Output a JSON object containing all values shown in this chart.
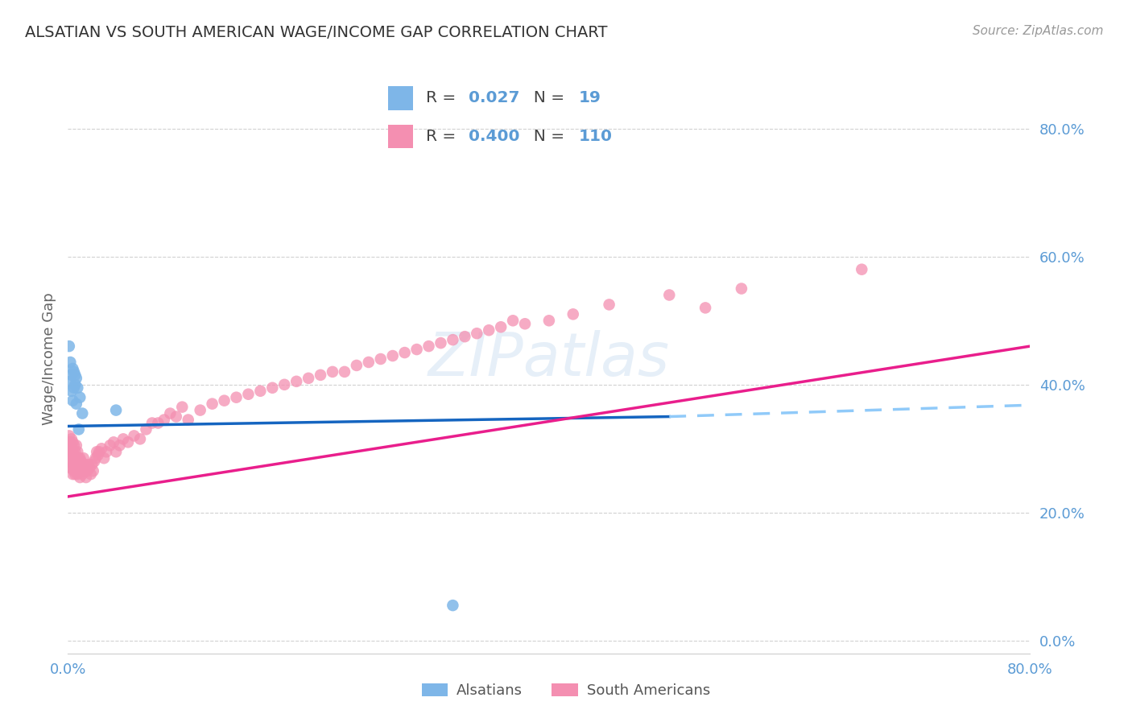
{
  "title": "ALSATIAN VS SOUTH AMERICAN WAGE/INCOME GAP CORRELATION CHART",
  "source": "Source: ZipAtlas.com",
  "ylabel": "Wage/Income Gap",
  "xlim": [
    0.0,
    0.8
  ],
  "ylim": [
    -0.02,
    0.9
  ],
  "ytick_vals": [
    0.0,
    0.2,
    0.4,
    0.6,
    0.8
  ],
  "xtick_vals": [
    0.0,
    0.1,
    0.2,
    0.3,
    0.4,
    0.5,
    0.6,
    0.7,
    0.8
  ],
  "watermark": "ZIPatlas",
  "legend_blue_r": "0.027",
  "legend_blue_n": "19",
  "legend_pink_r": "0.400",
  "legend_pink_n": "110",
  "blue_color": "#7EB6E8",
  "pink_color": "#F48FB1",
  "line_blue_color": "#1565C0",
  "line_pink_color": "#E91E8C",
  "line_dashed_color": "#90CAF9",
  "title_color": "#333333",
  "axis_label_color": "#5B9BD5",
  "grid_color": "#CCCCCC",
  "background_color": "#FFFFFF",
  "als_x": [
    0.001,
    0.002,
    0.002,
    0.003,
    0.003,
    0.004,
    0.004,
    0.005,
    0.005,
    0.006,
    0.006,
    0.007,
    0.007,
    0.008,
    0.009,
    0.01,
    0.012,
    0.04,
    0.32
  ],
  "als_y": [
    0.46,
    0.435,
    0.405,
    0.415,
    0.39,
    0.425,
    0.375,
    0.42,
    0.395,
    0.415,
    0.4,
    0.41,
    0.37,
    0.395,
    0.33,
    0.38,
    0.355,
    0.36,
    0.055
  ],
  "sa_x": [
    0.001,
    0.001,
    0.001,
    0.002,
    0.002,
    0.002,
    0.002,
    0.002,
    0.003,
    0.003,
    0.003,
    0.003,
    0.003,
    0.004,
    0.004,
    0.004,
    0.004,
    0.005,
    0.005,
    0.005,
    0.005,
    0.006,
    0.006,
    0.006,
    0.006,
    0.007,
    0.007,
    0.007,
    0.008,
    0.008,
    0.008,
    0.009,
    0.009,
    0.01,
    0.01,
    0.01,
    0.011,
    0.011,
    0.012,
    0.012,
    0.013,
    0.013,
    0.014,
    0.015,
    0.015,
    0.016,
    0.017,
    0.018,
    0.019,
    0.02,
    0.021,
    0.022,
    0.023,
    0.024,
    0.025,
    0.026,
    0.028,
    0.03,
    0.032,
    0.035,
    0.038,
    0.04,
    0.043,
    0.046,
    0.05,
    0.055,
    0.06,
    0.065,
    0.07,
    0.075,
    0.08,
    0.085,
    0.09,
    0.095,
    0.1,
    0.11,
    0.12,
    0.13,
    0.14,
    0.15,
    0.16,
    0.17,
    0.18,
    0.19,
    0.2,
    0.21,
    0.22,
    0.23,
    0.24,
    0.25,
    0.26,
    0.27,
    0.28,
    0.29,
    0.3,
    0.31,
    0.32,
    0.33,
    0.34,
    0.35,
    0.36,
    0.37,
    0.38,
    0.4,
    0.42,
    0.45,
    0.5,
    0.53,
    0.56,
    0.66
  ],
  "sa_y": [
    0.32,
    0.29,
    0.31,
    0.295,
    0.31,
    0.28,
    0.3,
    0.27,
    0.305,
    0.285,
    0.27,
    0.295,
    0.315,
    0.275,
    0.26,
    0.295,
    0.31,
    0.265,
    0.29,
    0.275,
    0.305,
    0.26,
    0.28,
    0.295,
    0.27,
    0.265,
    0.285,
    0.305,
    0.26,
    0.28,
    0.295,
    0.27,
    0.285,
    0.255,
    0.27,
    0.285,
    0.265,
    0.28,
    0.26,
    0.275,
    0.27,
    0.285,
    0.275,
    0.255,
    0.27,
    0.265,
    0.275,
    0.27,
    0.26,
    0.275,
    0.265,
    0.28,
    0.285,
    0.295,
    0.29,
    0.295,
    0.3,
    0.285,
    0.295,
    0.305,
    0.31,
    0.295,
    0.305,
    0.315,
    0.31,
    0.32,
    0.315,
    0.33,
    0.34,
    0.34,
    0.345,
    0.355,
    0.35,
    0.365,
    0.345,
    0.36,
    0.37,
    0.375,
    0.38,
    0.385,
    0.39,
    0.395,
    0.4,
    0.405,
    0.41,
    0.415,
    0.42,
    0.42,
    0.43,
    0.435,
    0.44,
    0.445,
    0.45,
    0.455,
    0.46,
    0.465,
    0.47,
    0.475,
    0.48,
    0.485,
    0.49,
    0.5,
    0.495,
    0.5,
    0.51,
    0.525,
    0.54,
    0.52,
    0.55,
    0.58
  ],
  "blue_line_x0": 0.0,
  "blue_line_x1": 0.5,
  "blue_line_x2": 0.8,
  "blue_line_y0": 0.335,
  "blue_line_y1": 0.35,
  "blue_line_y2": 0.368,
  "pink_line_x0": 0.0,
  "pink_line_x1": 0.8,
  "pink_line_y0": 0.225,
  "pink_line_y1": 0.46
}
